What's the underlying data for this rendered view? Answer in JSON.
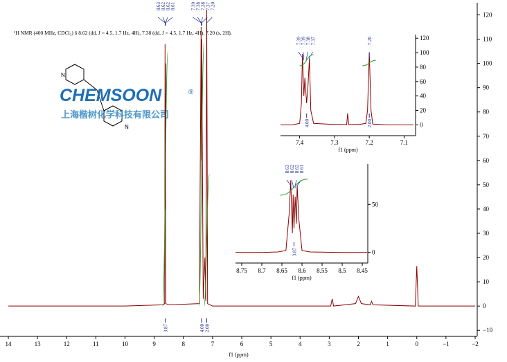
{
  "header": {
    "title": "¹H NMR (400 MHz, CDCl₃) δ 8.62 (dd, J = 4.5, 1.7 Hz, 4H), 7.38 (dd, J = 4.5, 1.7 Hz, 4H), 7.20 (s, 2H)."
  },
  "logo": {
    "brand": "CHEMSOON",
    "mark": "®",
    "company": "上海楷树化学科技有限公司"
  },
  "molecule": {
    "atoms": [
      "N",
      "N"
    ]
  },
  "chart_data": [
    {
      "type": "line",
      "xlabel": "f1 (ppm)",
      "xlim": [
        14.285,
        -2
      ],
      "ylim": [
        -12.5,
        125
      ],
      "xticks": [
        14,
        13,
        12,
        11,
        10,
        9,
        8,
        7,
        6,
        5,
        4,
        3,
        2,
        1,
        0,
        {
          "value": -1,
          "label": "−1"
        },
        {
          "value": -2,
          "label": "−2"
        }
      ],
      "yticks": [
        {
          "value": -10,
          "label": "−10"
        },
        0,
        10,
        20,
        30,
        40,
        50,
        60,
        70,
        80,
        90,
        100,
        110,
        120
      ],
      "series": [
        {
          "color": "#8b0000",
          "x": [
            14,
            10,
            8.7,
            8.64,
            8.628,
            8.624,
            8.62,
            8.616,
            8.612,
            8.6,
            8.5,
            7.45,
            7.392,
            7.384,
            7.378,
            7.372,
            7.32,
            7.262,
            7.23,
            7.2,
            7.17,
            7.0,
            2.95,
            2.9,
            2.85,
            2.1,
            2.0,
            1.9,
            1.6,
            1.55,
            1.5,
            0.05,
            0,
            -0.05,
            -2
          ],
          "y": [
            0,
            0,
            0.5,
            1,
            108,
            40,
            70,
            45,
            100,
            1,
            0.5,
            1,
            115,
            60,
            70,
            110,
            3,
            20,
            2,
            122,
            1,
            0,
            0,
            3,
            0,
            1,
            4,
            1,
            0.5,
            2,
            0.5,
            0,
            16.5,
            0,
            0
          ]
        }
      ],
      "peak_labels": [
        {
          "value": 8.628,
          "label": "8.63"
        },
        {
          "value": 8.622,
          "label": "8.62"
        },
        {
          "value": 8.617,
          "label": "8.62"
        },
        {
          "value": 8.612,
          "label": "8.61"
        },
        {
          "value": 7.392,
          "label": "7.39"
        },
        {
          "value": 7.384,
          "label": "7.38"
        },
        {
          "value": 7.378,
          "label": "7.38"
        },
        {
          "value": 7.372,
          "label": "7.37"
        },
        {
          "value": 7.2,
          "label": "7.20"
        }
      ],
      "integrals": [
        {
          "value": 3.87,
          "at": 8.62
        },
        {
          "value": 4.0,
          "label": "4.00",
          "at": 7.38
        },
        {
          "value": 2.0,
          "label": "2.00",
          "at": 7.2
        }
      ],
      "integral_color": "#2ca02c",
      "label_color": "#1a2a8a"
    },
    {
      "type": "line",
      "xlabel": "f1 (ppm)",
      "xlim": [
        7.455,
        7.073
      ],
      "ylim": [
        -15,
        125
      ],
      "xticks": [
        7.4,
        7.3,
        7.2,
        7.1
      ],
      "yticks": [
        0,
        20,
        40,
        60,
        80,
        100,
        120
      ],
      "series": [
        {
          "color": "#8b0000",
          "x": [
            7.455,
            7.42,
            7.4,
            7.395,
            7.392,
            7.388,
            7.385,
            7.38,
            7.376,
            7.372,
            7.368,
            7.36,
            7.3,
            7.265,
            7.262,
            7.259,
            7.23,
            7.21,
            7.205,
            7.2,
            7.195,
            7.19,
            7.15,
            7.073
          ],
          "y": [
            0,
            0,
            2,
            30,
            98,
            40,
            65,
            30,
            55,
            92,
            20,
            2,
            0.5,
            0.5,
            16,
            0.5,
            0.5,
            2,
            20,
            100,
            20,
            1,
            0,
            0
          ]
        }
      ],
      "peak_labels": [
        {
          "value": 7.392,
          "label": "7.39"
        },
        {
          "value": 7.388,
          "label": "7.39"
        },
        {
          "value": 7.38,
          "label": "7.38"
        },
        {
          "value": 7.372,
          "label": "7.37"
        },
        {
          "value": 7.2,
          "label": "7.20"
        }
      ],
      "integrals": [
        {
          "value": 4.0,
          "label": "4.00",
          "at": 7.38
        },
        {
          "value": 2.0,
          "label": "2.00",
          "at": 7.2
        }
      ],
      "integral_color": "#2ca02c",
      "label_color": "#1a2a8a"
    },
    {
      "type": "line",
      "xlabel": "f1 (ppm)",
      "xlim": [
        8.7655,
        8.438
      ],
      "ylim": [
        -11,
        92
      ],
      "xticks": [
        8.75,
        8.7,
        8.65,
        8.6,
        8.55,
        8.5,
        8.45
      ],
      "yticks": [
        0,
        50
      ],
      "series": [
        {
          "color": "#8b0000",
          "x": [
            8.7655,
            8.7,
            8.66,
            8.64,
            8.632,
            8.628,
            8.624,
            8.622,
            8.62,
            8.617,
            8.614,
            8.612,
            8.608,
            8.6,
            8.58,
            8.5,
            8.438
          ],
          "y": [
            0,
            0,
            0.5,
            2,
            40,
            75,
            20,
            60,
            25,
            58,
            30,
            70,
            35,
            2,
            0.5,
            0,
            0
          ]
        }
      ],
      "peak_labels": [
        {
          "value": 8.628,
          "label": "8.63"
        },
        {
          "value": 8.622,
          "label": "8.62"
        },
        {
          "value": 8.617,
          "label": "8.62"
        },
        {
          "value": 8.612,
          "label": "8.61"
        }
      ],
      "integrals": [
        {
          "value": 3.87,
          "at": 8.62
        }
      ],
      "integral_color": "#2ca02c",
      "label_color": "#1a2a8a"
    }
  ]
}
